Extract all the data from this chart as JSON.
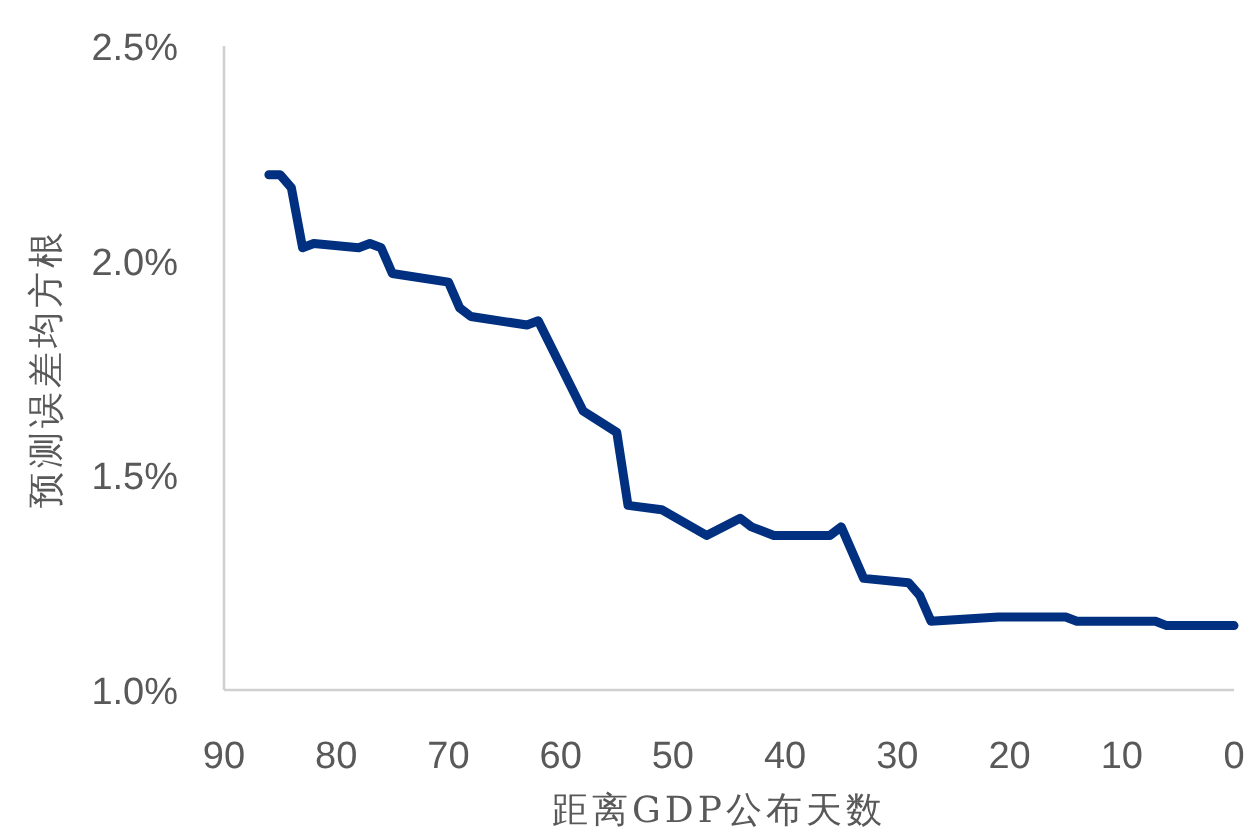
{
  "chart_data": {
    "type": "line",
    "xlabel": "距离GDP公布天数",
    "ylabel": "预测误差均方根",
    "x": [
      86,
      85,
      84,
      83,
      82,
      78,
      77,
      76,
      75,
      70,
      69,
      68,
      63,
      62,
      58,
      55,
      54,
      51,
      47,
      44,
      43,
      41,
      36,
      35,
      33,
      29,
      28,
      27,
      21,
      15,
      14,
      7,
      6,
      0
    ],
    "series": [
      {
        "color": "#00307f",
        "values": [
          2.2,
          2.2,
          2.17,
          2.03,
          2.04,
          2.03,
          2.04,
          2.03,
          1.97,
          1.95,
          1.89,
          1.87,
          1.85,
          1.86,
          1.65,
          1.6,
          1.43,
          1.42,
          1.36,
          1.4,
          1.38,
          1.36,
          1.36,
          1.38,
          1.26,
          1.25,
          1.22,
          1.16,
          1.17,
          1.17,
          1.16,
          1.16,
          1.15,
          1.15
        ]
      }
    ],
    "xlim": [
      90,
      0
    ],
    "xticks": [
      90,
      80,
      70,
      60,
      50,
      40,
      30,
      20,
      10,
      0
    ],
    "ylim": [
      1.0,
      2.5
    ],
    "yticks": [
      {
        "value": 1.0,
        "label": "1.0%"
      },
      {
        "value": 1.5,
        "label": "1.5%"
      },
      {
        "value": 2.0,
        "label": "2.0%"
      },
      {
        "value": 2.5,
        "label": "2.5%"
      }
    ],
    "grid": false,
    "marker": "none",
    "line_style": "solid"
  }
}
